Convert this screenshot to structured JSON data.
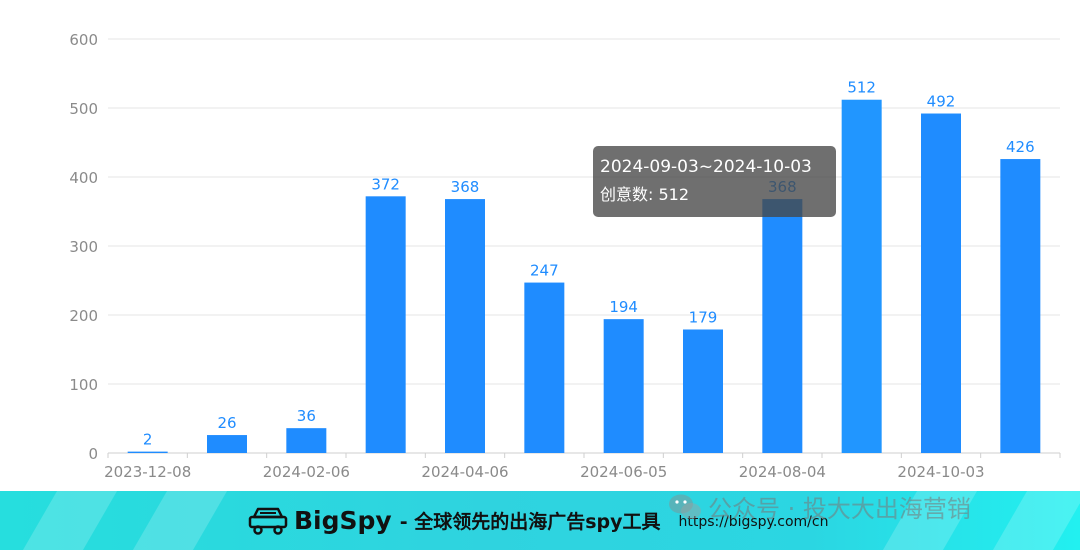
{
  "chart_data": {
    "type": "bar",
    "categories": [
      "2023-12-08",
      "",
      "2024-02-06",
      "",
      "2024-04-06",
      "",
      "2024-06-05",
      "",
      "2024-08-04",
      "",
      "2024-10-03",
      ""
    ],
    "values": [
      2,
      26,
      36,
      372,
      368,
      247,
      194,
      179,
      368,
      512,
      492,
      426
    ],
    "data_labels": [
      "2",
      "26",
      "36",
      "372",
      "368",
      "247",
      "194",
      "179",
      "368",
      "512",
      "492",
      "426"
    ],
    "yticks": [
      "0",
      "100",
      "200",
      "300",
      "400",
      "500",
      "600"
    ],
    "xtick_labels": [
      "2023-12-08",
      "2024-02-06",
      "2024-04-06",
      "2024-06-05",
      "2024-08-04",
      "2024-10-03"
    ],
    "ylim": [
      0,
      600
    ],
    "grid": true,
    "bar_color": "#1f8cff",
    "highlight_color": "#2196ff",
    "highlight_index": 9
  },
  "tooltip": {
    "range": "2024-09-03~2024-10-03",
    "label": "创意数: 512"
  },
  "banner": {
    "brand": "BigSpy",
    "slogan": "- 全球领先的出海广告spy工具",
    "url": "https://bigspy.com/cn",
    "logo_icon": "car-logo-icon"
  },
  "watermark": {
    "text": "公众号 · 投大大出海营销",
    "icon": "wechat-icon"
  }
}
